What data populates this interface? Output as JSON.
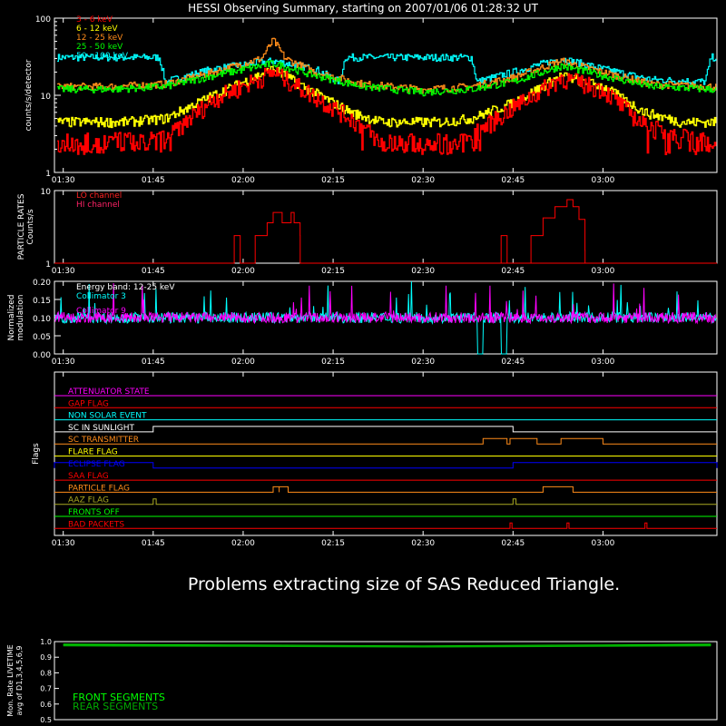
{
  "title": "HESSI Observing Summary, starting on 2007/01/06 01:28:32 UT",
  "message": "Problems extracting size of SAS Reduced Triangle.",
  "time_ticks": [
    "01:30",
    "01:45",
    "02:00",
    "02:15",
    "02:30",
    "02:45",
    "03:00"
  ],
  "colors": {
    "bg": "#000000",
    "axis": "#ffffff",
    "band1": "#ff0000",
    "band2": "#ffff00",
    "band3": "#ff8c1a",
    "band4": "#00ff00",
    "band5": "#00ffff",
    "magenta": "#ff00ff",
    "cyan": "#00ffff",
    "blue": "#0000ff",
    "orange": "#ff8c1a",
    "lime": "#00ff00",
    "olive": "#aaaa22"
  },
  "chart_data": [
    {
      "type": "line",
      "name": "lightcurve",
      "ylabel": "counts/s/detector",
      "yscale": "log",
      "ylim": [
        1,
        100
      ],
      "yticks": [
        "1",
        "10",
        "100"
      ],
      "xlim": [
        "01:28:32",
        "03:19:00"
      ],
      "legend": [
        "3 - 6 keV",
        "6 - 12 keV",
        "12 - 25 keV",
        "25 - 50 keV",
        "50 - 100 keV"
      ],
      "series": [
        {
          "name": "3 - 6 keV",
          "color": "#ff0000",
          "x": [
            "01:30",
            "01:40",
            "01:47",
            "01:55",
            "02:05",
            "02:10",
            "02:18",
            "02:23",
            "02:33",
            "02:38",
            "02:45",
            "02:53",
            "03:00",
            "03:07",
            "03:13",
            "03:18"
          ],
          "y": [
            2.5,
            2.6,
            2.8,
            9,
            20,
            12,
            5,
            2.5,
            2.5,
            3,
            7,
            17,
            12,
            4,
            3,
            2.5
          ]
        },
        {
          "name": "6 - 12 keV",
          "color": "#ffff00",
          "x": [
            "01:30",
            "01:40",
            "01:47",
            "01:55",
            "02:05",
            "02:10",
            "02:18",
            "02:23",
            "02:33",
            "02:38",
            "02:45",
            "02:53",
            "03:00",
            "03:07",
            "03:13",
            "03:18"
          ],
          "y": [
            4.5,
            4.5,
            5,
            10,
            22,
            13,
            6,
            4.5,
            4.5,
            5,
            8,
            18,
            13,
            6,
            4.5,
            4.5
          ]
        },
        {
          "name": "12 - 25 keV",
          "color": "#ff8c1a",
          "x": [
            "01:30",
            "01:38",
            "01:47",
            "01:55",
            "02:03",
            "02:05",
            "02:07",
            "02:12",
            "02:20",
            "02:30",
            "02:38",
            "02:45",
            "02:53",
            "03:00",
            "03:08",
            "03:18"
          ],
          "y": [
            13,
            13,
            14,
            20,
            30,
            52,
            30,
            20,
            14,
            12,
            13,
            17,
            28,
            20,
            14,
            13
          ]
        },
        {
          "name": "25 - 50 keV",
          "color": "#00ff00",
          "x": [
            "01:30",
            "01:38",
            "01:47",
            "01:55",
            "02:05",
            "02:12",
            "02:20",
            "02:30",
            "02:38",
            "02:45",
            "02:53",
            "03:00",
            "03:08",
            "03:18"
          ],
          "y": [
            12,
            12,
            13,
            18,
            26,
            18,
            13,
            11,
            12,
            15,
            24,
            18,
            13,
            12
          ]
        },
        {
          "name": "50 - 100 keV",
          "color": "#00ffff",
          "x": [
            "01:30",
            "01:46",
            "01:47",
            "01:55",
            "02:05",
            "02:12",
            "02:16",
            "02:17",
            "02:27",
            "02:38",
            "02:39",
            "02:45",
            "02:53",
            "03:00",
            "03:08",
            "03:17",
            "03:18"
          ],
          "y": [
            31,
            31,
            15,
            22,
            28,
            22,
            15,
            31,
            31,
            31,
            15,
            20,
            30,
            22,
            16,
            15,
            31
          ]
        }
      ]
    },
    {
      "type": "line",
      "name": "particle",
      "ylabel": "PARTICLE RATES Counts/s",
      "yscale": "log",
      "ylim": [
        1,
        10
      ],
      "yticks": [
        "1",
        "10"
      ],
      "legend": [
        "LO channel",
        "HI channel"
      ],
      "series": [
        {
          "name": "LO channel",
          "color": "#ff0000",
          "x": [
            "01:28:32",
            "01:58:30",
            "01:58:31",
            "01:59:30",
            "01:59:31",
            "02:02:00",
            "02:04:00",
            "02:05:00",
            "02:06:30",
            "02:08:00",
            "02:08:30",
            "02:09:30",
            "02:09:31",
            "03:19:00"
          ],
          "x_note": "",
          "y": [
            1,
            1,
            2.4,
            2.4,
            1,
            2.4,
            3.6,
            5,
            3.6,
            5,
            3.6,
            2.4,
            1,
            1
          ]
        },
        {
          "name": "HI channel",
          "color": "#ff0000",
          "x": [
            "02:43:00",
            "02:43:01",
            "02:44:00",
            "02:44:01",
            "02:48:00",
            "02:50:00",
            "02:52:00",
            "02:54:00",
            "02:55:00",
            "02:56:00",
            "02:57:00",
            "02:57:01",
            "03:19:00"
          ],
          "y": [
            1,
            2.4,
            2.4,
            1,
            2.4,
            4.2,
            6,
            7.5,
            6,
            4,
            1.5,
            1,
            1
          ]
        }
      ]
    },
    {
      "type": "line",
      "name": "modulation",
      "ylabel": "Normalized modulation",
      "ylim": [
        0,
        0.2
      ],
      "yticks": [
        "0.00",
        "0.05",
        "0.10",
        "0.15",
        "0.20"
      ],
      "annotations": [
        "Energy band: 12-25 keV",
        "Collimator 3",
        "Collimator 9"
      ],
      "series": [
        {
          "name": "Collimator 3",
          "color": "#00ffff",
          "baseline": 0.1,
          "dropouts": [
            [
              "02:39",
              "02:40"
            ],
            [
              "02:43",
              "02:44"
            ]
          ]
        },
        {
          "name": "Collimator 9",
          "color": "#ff00ff",
          "baseline": 0.1
        }
      ]
    },
    {
      "type": "line",
      "name": "flags",
      "ylabel": "Flags",
      "flags": [
        {
          "label": "ATTENUATOR STATE",
          "color": "#ff00ff",
          "segments": []
        },
        {
          "label": "GAP FLAG",
          "color": "#ff0000",
          "segments": []
        },
        {
          "label": "NON SOLAR EVENT",
          "color": "#00ffff",
          "segments": []
        },
        {
          "label": "SC IN SUNLIGHT",
          "color": "#ffffff",
          "segments": [
            [
              "01:45",
              "02:45"
            ]
          ]
        },
        {
          "label": "SC TRANSMITTER",
          "color": "#ff8c1a",
          "segments": [
            [
              "02:40",
              "02:44"
            ],
            [
              "02:44:30",
              "02:49"
            ],
            [
              "02:53",
              "03:00"
            ]
          ]
        },
        {
          "label": "FLARE FLAG",
          "color": "#ffff00",
          "segments": []
        },
        {
          "label": "ECLIPSE FLAG",
          "color": "#0000ff",
          "segments": [
            [
              "01:28:32",
              "01:45"
            ],
            [
              "02:45",
              "03:19"
            ]
          ]
        },
        {
          "label": "SAA FLAG",
          "color": "#ff0000",
          "segments": []
        },
        {
          "label": "PARTICLE FLAG",
          "color": "#ff8c1a",
          "segments": [
            [
              "02:05",
              "02:06"
            ],
            [
              "02:06",
              "02:07:30"
            ],
            [
              "02:50",
              "02:55"
            ]
          ]
        },
        {
          "label": "AAZ FLAG",
          "color": "#aaaa22",
          "segments": [
            [
              "01:45",
              "01:45:30"
            ],
            [
              "02:45",
              "02:45:30"
            ]
          ]
        },
        {
          "label": "FRONTS OFF",
          "color": "#00ff00",
          "segments": []
        },
        {
          "label": "BAD PACKETS",
          "color": "#ff0000",
          "segments": [
            [
              "02:44:30",
              "02:44:50"
            ],
            [
              "02:54",
              "02:54:20"
            ],
            [
              "03:07",
              "03:07:20"
            ]
          ]
        }
      ]
    },
    {
      "type": "line",
      "name": "livetime",
      "ylabel": "Mon. Rate LIVETIME avg of D1,3,4,5,6,9",
      "ylim": [
        0.5,
        1.0
      ],
      "yticks": [
        "0.5",
        "0.6",
        "0.7",
        "0.8",
        "0.9",
        "1.0"
      ],
      "legend": [
        "FRONT SEGMENTS",
        "REAR SEGMENTS"
      ],
      "series": [
        {
          "name": "FRONT SEGMENTS",
          "color": "#00ff00",
          "x": [
            "01:30",
            "02:00",
            "02:30",
            "03:00",
            "03:18"
          ],
          "y": [
            0.98,
            0.975,
            0.97,
            0.975,
            0.98
          ]
        },
        {
          "name": "REAR SEGMENTS",
          "color": "#00aa00",
          "x": [
            "01:30",
            "02:00",
            "02:30",
            "03:00",
            "03:18"
          ],
          "y": [
            0.975,
            0.972,
            0.968,
            0.972,
            0.975
          ]
        }
      ]
    }
  ]
}
